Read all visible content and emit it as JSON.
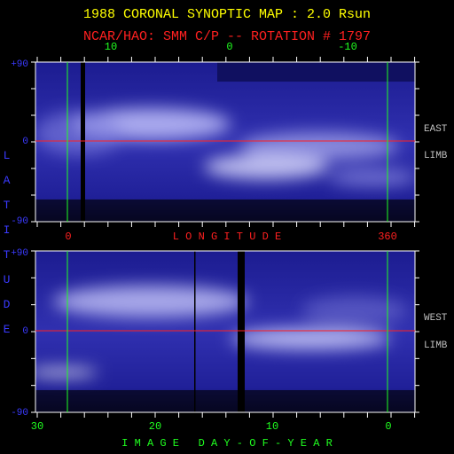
{
  "header": {
    "title": "1988 CORONAL SYNOPTIC MAP : 2.0 Rsun",
    "subtitle": "NCAR/HAO: SMM C/P -- ROTATION # 1797"
  },
  "top_panel": {
    "x_ticks": [
      "10",
      "0",
      "-10"
    ],
    "y_labels": [
      "+90",
      "0",
      "-90"
    ],
    "side_labels": [
      "EAST",
      "LIMB"
    ]
  },
  "longitude": {
    "ticks": [
      "0",
      "360"
    ],
    "label": "L O N G I T U D E"
  },
  "latitude_label": "LATITUDE",
  "bottom_panel": {
    "y_labels": [
      "+90",
      "0",
      "-90"
    ],
    "side_labels": [
      "WEST",
      "LIMB"
    ],
    "x_ticks": [
      "30",
      "20",
      "10",
      "0"
    ],
    "x_label": "I M A G E   D A Y - O F - Y E A R"
  }
}
